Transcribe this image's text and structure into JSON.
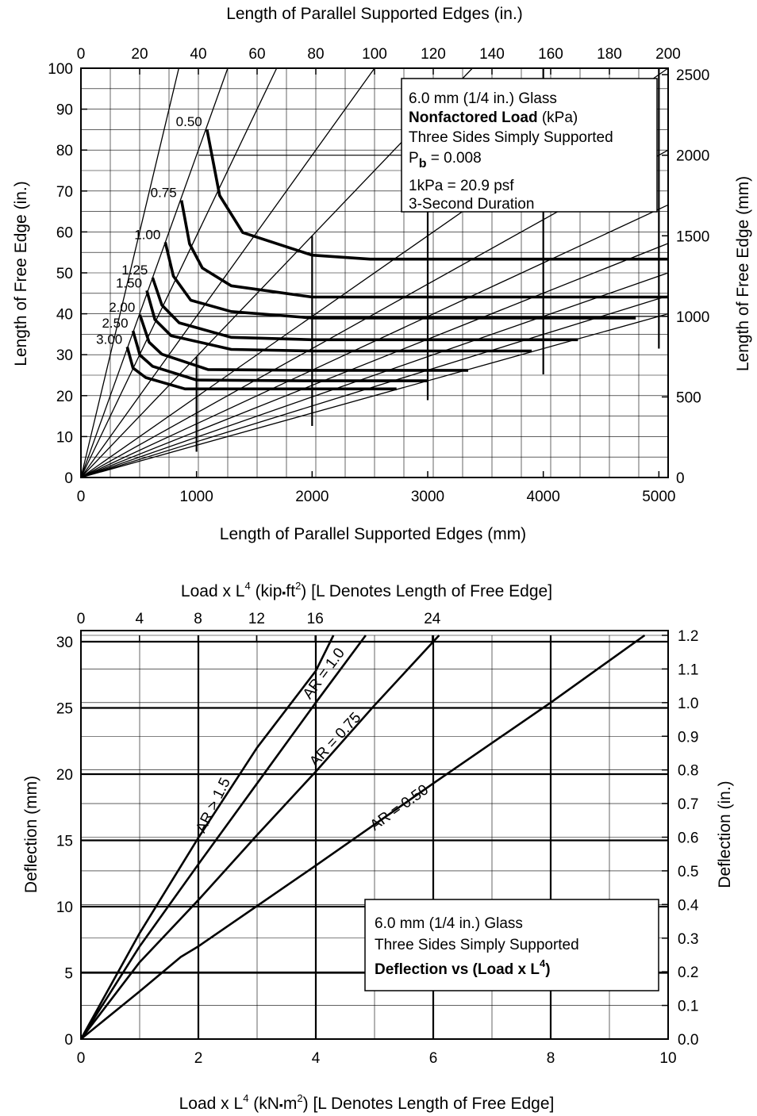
{
  "chart_data": [
    {
      "type": "line",
      "top_axis_title": "Length of Parallel Supported Edges (in.)",
      "left_axis_title": "Length of Free Edge (in.)",
      "right_axis_title": "Length of Free Edge (mm)",
      "bottom_axis_title": "Length of Parallel Supported Edges (mm)",
      "xlim": [
        0,
        5080
      ],
      "ylim_in": [
        0,
        100
      ],
      "ylim_mm": [
        0,
        2540
      ],
      "x_ticks_mm": [
        "0",
        "1000",
        "2000",
        "3000",
        "4000",
        "5000"
      ],
      "x_ticks_in": [
        "0",
        "20",
        "40",
        "60",
        "80",
        "100",
        "120",
        "140",
        "160",
        "180",
        "200"
      ],
      "y_ticks_in": [
        "0",
        "10",
        "20",
        "30",
        "40",
        "50",
        "60",
        "70",
        "80",
        "90",
        "100"
      ],
      "y_ticks_mm": [
        "0",
        "500",
        "1000",
        "1500",
        "2000",
        "2500"
      ],
      "grid": true,
      "note": {
        "line1": "6.0 mm (1/4 in.) Glass",
        "line2_bold": "Nonfactored Load",
        "line2_rest": " (kPa)",
        "line3": "Three Sides Simply Supported",
        "line4_p": "P",
        "line4_sub": "b",
        "line4_rest": " = 0.008",
        "line5": "1kPa = 20.9 psf",
        "line6": "3-Second Duration"
      },
      "aspect_ratio_lines_slope": [
        3.0,
        2.0,
        1.5,
        1.0,
        0.75,
        0.5,
        0.4,
        0.333,
        0.286,
        0.25,
        0.222,
        0.2
      ],
      "series": [
        {
          "name": "0.50",
          "points": [
            [
              1090,
              2160
            ],
            [
              1200,
              1750
            ],
            [
              1400,
              1520
            ],
            [
              2000,
              1380
            ],
            [
              2500,
              1355
            ],
            [
              5080,
              1355
            ]
          ]
        },
        {
          "name": "0.75",
          "points": [
            [
              870,
              1720
            ],
            [
              940,
              1450
            ],
            [
              1050,
              1300
            ],
            [
              1300,
              1190
            ],
            [
              2000,
              1120
            ],
            [
              5080,
              1120
            ]
          ]
        },
        {
          "name": "1.00",
          "points": [
            [
              730,
              1460
            ],
            [
              800,
              1250
            ],
            [
              950,
              1100
            ],
            [
              1300,
              1030
            ],
            [
              2000,
              990
            ],
            [
              4800,
              990
            ]
          ]
        },
        {
          "name": "1.25",
          "points": [
            [
              620,
              1240
            ],
            [
              700,
              1070
            ],
            [
              850,
              960
            ],
            [
              1300,
              870
            ],
            [
              2000,
              855
            ],
            [
              4300,
              855
            ]
          ]
        },
        {
          "name": "1.50",
          "points": [
            [
              570,
              1160
            ],
            [
              640,
              980
            ],
            [
              780,
              880
            ],
            [
              1300,
              795
            ],
            [
              2000,
              785
            ],
            [
              3900,
              785
            ]
          ]
        },
        {
          "name": "2.00",
          "points": [
            [
              510,
              1010
            ],
            [
              590,
              840
            ],
            [
              700,
              765
            ],
            [
              1100,
              670
            ],
            [
              2000,
              665
            ],
            [
              3350,
              665
            ]
          ]
        },
        {
          "name": "2.50",
          "points": [
            [
              450,
              910
            ],
            [
              510,
              760
            ],
            [
              620,
              690
            ],
            [
              1000,
              605
            ],
            [
              2000,
              600
            ],
            [
              3000,
              600
            ]
          ]
        },
        {
          "name": "3.00",
          "points": [
            [
              400,
              810
            ],
            [
              450,
              680
            ],
            [
              560,
              620
            ],
            [
              900,
              550
            ],
            [
              2000,
              550
            ],
            [
              2730,
              550
            ]
          ]
        }
      ],
      "curve_labels": [
        "0.50",
        "0.75",
        "1.00",
        "1.25",
        "1.50",
        "2.00",
        "2.50",
        "3.00"
      ]
    },
    {
      "type": "line",
      "top_axis_title_pre": "Load x L",
      "top_axis_title_sup": "4",
      "top_axis_title_mid": " (kip",
      "top_axis_title_dot": "▪",
      "top_axis_title_unit": "ft",
      "top_axis_title_sup2": "2",
      "top_axis_title_post": ")  [L Denotes Length of Free Edge]",
      "bottom_axis_title_pre": "Load x L",
      "bottom_axis_title_sup": "4",
      "bottom_axis_title_mid": " (kN",
      "bottom_axis_title_dot": "▪",
      "bottom_axis_title_unit": "m",
      "bottom_axis_title_sup2": "2",
      "bottom_axis_title_post": ")  [L Denotes Length of Free Edge]",
      "left_axis_title": "Deflection (mm)",
      "right_axis_title": "Deflection (in.)",
      "xlim": [
        0,
        10
      ],
      "ylim": [
        0,
        30.48
      ],
      "x_ticks_bottom": [
        "0",
        "2",
        "4",
        "6",
        "8",
        "10"
      ],
      "x_ticks_top": [
        "0",
        "4",
        "8",
        "12",
        "16",
        "24"
      ],
      "y_ticks_mm": [
        "0",
        "5",
        "10",
        "15",
        "20",
        "25",
        "30"
      ],
      "y_ticks_in": [
        "0.0",
        "0.1",
        "0.2",
        "0.3",
        "0.4",
        "0.5",
        "0.6",
        "0.7",
        "0.8",
        "0.9",
        "1.0",
        "1.1",
        "1.2"
      ],
      "grid": true,
      "note": {
        "line1": "6.0 mm (1/4 in.) Glass",
        "line2": "Three Sides Simply Supported",
        "line3_pre": "Deflection vs (Load x L",
        "line3_sup": "4",
        "line3_post": ")"
      },
      "series": [
        {
          "name": "AR > 1.5",
          "points": [
            [
              0,
              0
            ],
            [
              1.0,
              8.0
            ],
            [
              2.0,
              15.2
            ],
            [
              3.0,
              22.0
            ],
            [
              4.0,
              27.8
            ],
            [
              4.3,
              30.48
            ]
          ]
        },
        {
          "name": "AR = 1.0",
          "points": [
            [
              0,
              0
            ],
            [
              1.0,
              7.0
            ],
            [
              2.0,
              13.2
            ],
            [
              3.0,
              19.3
            ],
            [
              4.0,
              25.4
            ],
            [
              4.85,
              30.48
            ]
          ]
        },
        {
          "name": "AR = 0.75",
          "points": [
            [
              0,
              0
            ],
            [
              1.0,
              5.8
            ],
            [
              2.0,
              10.5
            ],
            [
              3.0,
              15.4
            ],
            [
              4.0,
              20.2
            ],
            [
              5.0,
              25.2
            ],
            [
              6.1,
              30.48
            ]
          ]
        },
        {
          "name": "AR = 0.50",
          "points": [
            [
              0,
              0
            ],
            [
              1.0,
              3.6
            ],
            [
              1.7,
              6.2
            ],
            [
              2.0,
              7.0
            ],
            [
              4.0,
              13.1
            ],
            [
              6.0,
              19.3
            ],
            [
              8.0,
              25.4
            ],
            [
              9.6,
              30.48
            ]
          ]
        }
      ],
      "series_labels": [
        "AR > 1.5",
        "AR = 1.0",
        "AR = 0.75",
        "AR = 0.50"
      ]
    }
  ]
}
